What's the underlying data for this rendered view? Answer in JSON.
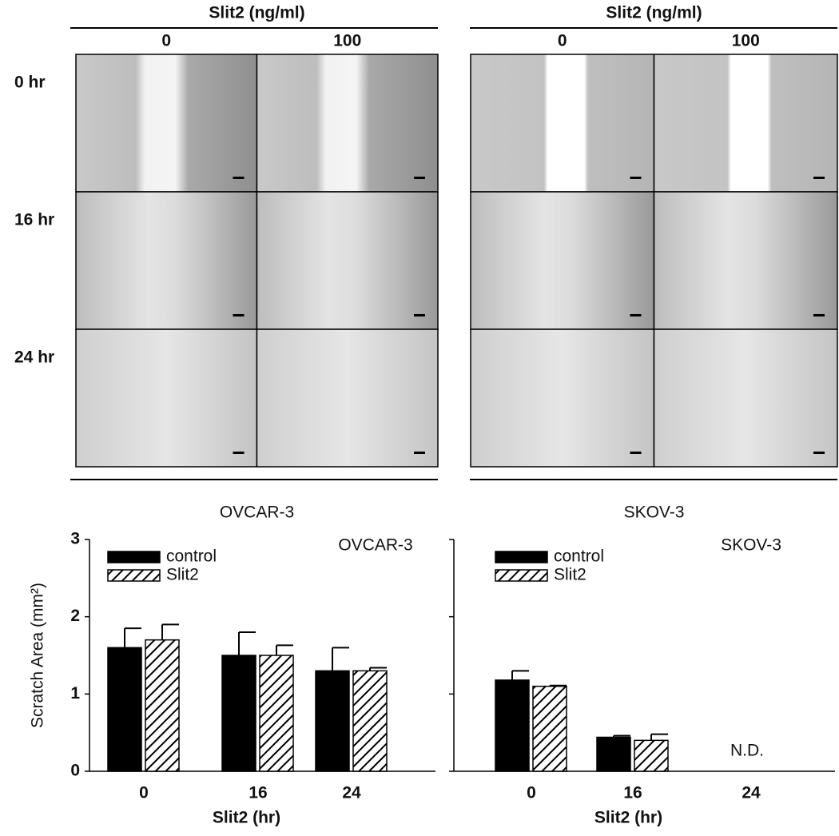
{
  "panels": [
    {
      "header": "Slit2 (ng/ml)",
      "columns": [
        "0",
        "100"
      ],
      "rows": [
        "0 hr",
        "16 hr",
        "24 hr"
      ],
      "caption": "OVCAR-3"
    },
    {
      "header": "Slit2 (ng/ml)",
      "columns": [
        "0",
        "100"
      ],
      "caption": "SKOV-3"
    }
  ],
  "chart_data": [
    {
      "type": "bar",
      "annotation": "OVCAR-3",
      "ylabel": "Scratch Area (mm²)",
      "xlabel": "Slit2 (hr)",
      "categories": [
        "0",
        "16",
        "24"
      ],
      "ylim": [
        0,
        3
      ],
      "yticks": [
        0,
        1,
        2,
        3
      ],
      "ytick_labels": true,
      "series": [
        {
          "name": "control",
          "color": "#000000",
          "hatch": false,
          "values": [
            1.6,
            1.5,
            1.3
          ],
          "errors": [
            0.25,
            0.3,
            0.3
          ]
        },
        {
          "name": "Slit2",
          "color": "#ffffff",
          "hatch": true,
          "values": [
            1.7,
            1.5,
            1.3
          ],
          "errors": [
            0.2,
            0.13,
            0.04
          ]
        }
      ]
    },
    {
      "type": "bar",
      "annotation": "SKOV-3",
      "xlabel": "Slit2 (hr)",
      "missing_label": "N.D.",
      "categories": [
        "0",
        "16",
        "24"
      ],
      "ylim": [
        0,
        3
      ],
      "yticks": [
        0,
        1,
        2,
        3
      ],
      "ytick_labels": false,
      "series": [
        {
          "name": "control",
          "color": "#000000",
          "hatch": false,
          "values": [
            1.18,
            0.44,
            null
          ],
          "errors": [
            0.12,
            0.02,
            null
          ]
        },
        {
          "name": "Slit2",
          "color": "#ffffff",
          "hatch": true,
          "values": [
            1.1,
            0.4,
            null
          ],
          "errors": [
            0.01,
            0.08,
            null
          ]
        }
      ]
    }
  ]
}
